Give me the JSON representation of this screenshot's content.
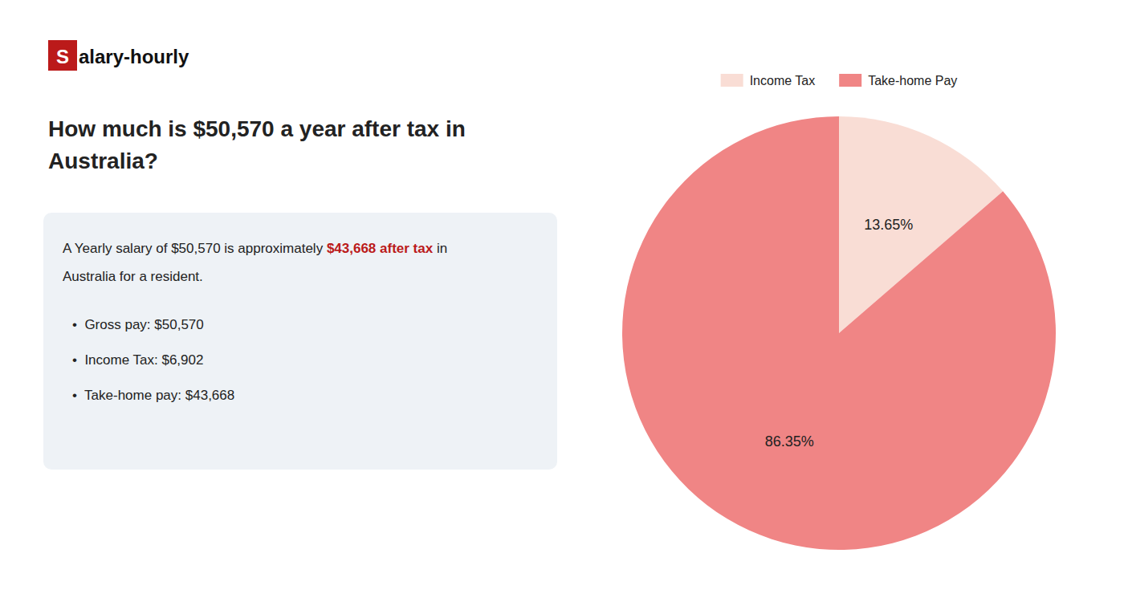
{
  "chart_data": {
    "type": "pie",
    "title": [
      "How much is $50,570 a year after tax in",
      "Australia?"
    ],
    "categories": [
      "Income Tax",
      "Take-home Pay"
    ],
    "values": [
      13.65,
      86.35
    ],
    "value_labels": [
      "13.65%",
      "86.35%"
    ],
    "colors": [
      "#f9ddd5",
      "#f08585"
    ],
    "data_labels": true,
    "legend": "top",
    "annotations": [
      {
        "text": "S",
        "color": "#bb1a1a"
      },
      {
        "text": "alary-hourly"
      },
      {
        "text": "A Yearly salary of $50,570 is approximately "
      },
      {
        "text": "$43,668 after tax",
        "color": "#bb1a1a"
      },
      {
        "text": " in"
      },
      {
        "text": "Australia for a resident."
      },
      {
        "text": "•  Gross pay: $50,570"
      },
      {
        "text": "•  Income Tax: $6,902"
      },
      {
        "text": "•  Take-home pay: $43,668"
      }
    ]
  }
}
